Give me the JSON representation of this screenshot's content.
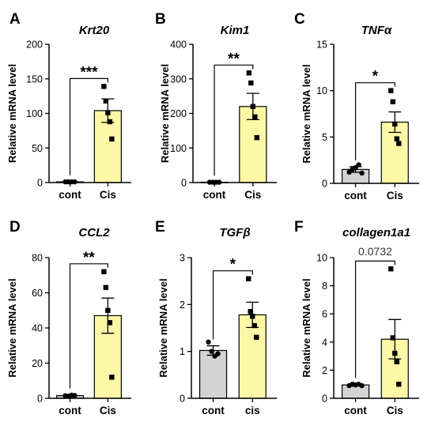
{
  "colors": {
    "control_bar": "#d3d3d3",
    "treated_bar": "#fdf7a6",
    "ink": "#000000",
    "pvalue_ink": "#333333"
  },
  "y_axis_label": "Relative mRNA level",
  "chart_data": [
    {
      "type": "bar",
      "panel_letter": "A",
      "title": "Krt20",
      "categories": [
        "cont",
        "Cis"
      ],
      "ylim": [
        0,
        200
      ],
      "yticks": [
        0,
        50,
        100,
        150,
        200
      ],
      "means": [
        1,
        104
      ],
      "sem": [
        0.5,
        17
      ],
      "points": [
        [
          1,
          1,
          1,
          1
        ],
        [
          139,
          118,
          101,
          88,
          63
        ]
      ],
      "significance": "***"
    },
    {
      "type": "bar",
      "panel_letter": "B",
      "title": "Kim1",
      "categories": [
        "cont",
        "Cis"
      ],
      "ylim": [
        0,
        400
      ],
      "yticks": [
        0,
        100,
        200,
        300,
        400
      ],
      "means": [
        1,
        220
      ],
      "sem": [
        0.5,
        38
      ],
      "points": [
        [
          1,
          1,
          1,
          1
        ],
        [
          317,
          288,
          220,
          190,
          130
        ]
      ],
      "significance": "**"
    },
    {
      "type": "bar",
      "panel_letter": "C",
      "title": "TNFα",
      "categories": [
        "cont",
        "Cis"
      ],
      "ylim": [
        0,
        15
      ],
      "yticks": [
        0,
        5,
        10,
        15
      ],
      "means": [
        1.5,
        6.6
      ],
      "sem": [
        0.3,
        1.1
      ],
      "points": [
        [
          1.2,
          1.5,
          1.7,
          2.0,
          1.1
        ],
        [
          10.0,
          8.8,
          6.4,
          4.8,
          4.3
        ]
      ],
      "significance": "*"
    },
    {
      "type": "bar",
      "panel_letter": "D",
      "title": "CCL2",
      "categories": [
        "cont",
        "Cis"
      ],
      "ylim": [
        0,
        80
      ],
      "yticks": [
        0,
        20,
        40,
        60,
        80
      ],
      "means": [
        1.5,
        47
      ],
      "sem": [
        0.4,
        10
      ],
      "points": [
        [
          1.5,
          1.2,
          1.8,
          1.6
        ],
        [
          72,
          63,
          50,
          43,
          12
        ]
      ],
      "significance": "**"
    },
    {
      "type": "bar",
      "panel_letter": "E",
      "title": "TGFβ",
      "categories": [
        "cont",
        "cis"
      ],
      "ylim": [
        0,
        3
      ],
      "yticks": [
        0,
        1,
        2,
        3
      ],
      "means": [
        1.02,
        1.78
      ],
      "sem": [
        0.1,
        0.27
      ],
      "points": [
        [
          1.2,
          1.0,
          0.9,
          0.95
        ],
        [
          2.55,
          1.85,
          1.75,
          1.55,
          1.3
        ]
      ],
      "significance": "*"
    },
    {
      "type": "bar",
      "panel_letter": "F",
      "title": "collagen1a1",
      "categories": [
        "cont",
        "Cis"
      ],
      "ylim": [
        0,
        10
      ],
      "yticks": [
        0,
        2,
        4,
        6,
        8,
        10
      ],
      "means": [
        0.95,
        4.2
      ],
      "sem": [
        0.05,
        1.4
      ],
      "points": [
        [
          0.9,
          1.0,
          0.95,
          1.0,
          0.9
        ],
        [
          9.2,
          4.3,
          3.2,
          2.6,
          1.0
        ]
      ],
      "significance": "0.0732"
    }
  ]
}
